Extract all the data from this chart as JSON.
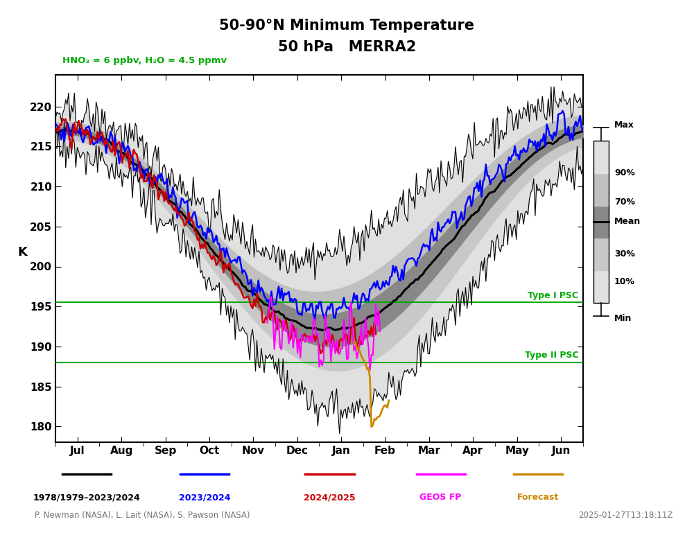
{
  "title_line1": "50-90°N Minimum Temperature",
  "title_line2": "50 hPa   MERRA2",
  "subtitle": "HNO₃ = 6 ppbv, H₂O = 4.5 ppmv",
  "ylabel": "K",
  "ylim": [
    178,
    224
  ],
  "yticks": [
    180,
    185,
    190,
    195,
    200,
    205,
    210,
    215,
    220
  ],
  "months": [
    "Jul",
    "Aug",
    "Sep",
    "Oct",
    "Nov",
    "Dec",
    "Jan",
    "Feb",
    "Mar",
    "Apr",
    "May",
    "Jun"
  ],
  "type1_psc": 195.5,
  "type2_psc": 188.0,
  "legend_labels": [
    "1978/1979–2023/2024",
    "2023/2024",
    "2024/2025",
    "GEOS FP",
    "Forecast"
  ],
  "legend_colors": [
    "#000000",
    "#0000ff",
    "#cc0000",
    "#ff00ff",
    "#cc8800"
  ],
  "credit_left": "P. Newman (NASA), L. Lait (NASA), S. Pawson (NASA)",
  "credit_right": "2025-01-27T13:18:11Z",
  "color_mean": "#000000",
  "color_2324": "#0000ff",
  "color_2425": "#cc0000",
  "color_geos": "#ff00ff",
  "color_forecast": "#cc8800",
  "background_color": "#ffffff",
  "title_color": "#000000",
  "subtitle_color": "#00aa00",
  "psc_color": "#00aa00",
  "band_max_min": "#e0e0e0",
  "band_90_10": "#c8c8c8",
  "band_70_30": "#888888",
  "figsize": [
    10.01,
    7.69
  ],
  "dpi": 100
}
